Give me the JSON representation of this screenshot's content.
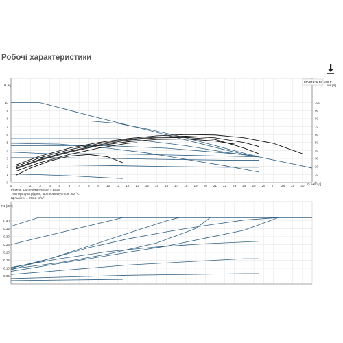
{
  "page": {
    "title": "Робочі характеристики",
    "download_icon": "download-icon"
  },
  "info_lines": [
    "Рідина, що перекачується = Вода",
    "Температура рідини, що перекачується : 60 °C",
    "Щільність = 983.2 кг/м³"
  ],
  "chart_data": [
    {
      "type": "line",
      "title": "MAGNA1 50-100 F",
      "xlabel": "Q [м³/год]",
      "ylabel": "H [м]",
      "y2label": "eta [%]",
      "xlim": [
        0,
        31
      ],
      "ylim": [
        0,
        11
      ],
      "y2lim": [
        0,
        110
      ],
      "x_ticks": [
        0,
        1,
        2,
        3,
        4,
        5,
        6,
        7,
        8,
        9,
        10,
        11,
        12,
        13,
        14,
        15,
        16,
        17,
        18,
        19,
        20,
        21,
        22,
        23,
        24,
        25,
        26,
        27,
        28,
        29,
        30
      ],
      "y_ticks": [
        0,
        1,
        2,
        3,
        4,
        5,
        6,
        7,
        8,
        9,
        10
      ],
      "y2_ticks": [
        0,
        10,
        20,
        30,
        40,
        50,
        60,
        70,
        80,
        90,
        100
      ],
      "grid": true,
      "series": [
        {
          "kind": "pump",
          "x": [
            0,
            3,
            6,
            9,
            11.3,
            13,
            16.5,
            21,
            24.8
          ],
          "y": [
            10,
            10,
            9.05,
            8.1,
            7.4,
            6.9,
            5.8,
            4.4,
            3.3
          ]
        },
        {
          "kind": "pump",
          "x": [
            0,
            8,
            11,
            14,
            18,
            22,
            25.5
          ],
          "y": [
            7.7,
            7.7,
            7.4,
            6.7,
            5.6,
            4.3,
            3.2
          ]
        },
        {
          "kind": "pump",
          "x": [
            0,
            11,
            14,
            18,
            22,
            25.5
          ],
          "y": [
            5.5,
            5.5,
            5.2,
            4.6,
            3.8,
            3.2
          ]
        },
        {
          "kind": "pump",
          "x": [
            0,
            3,
            10,
            16,
            22,
            25.5
          ],
          "y": [
            4.6,
            4.6,
            4.6,
            4.3,
            3.7,
            3.3
          ]
        },
        {
          "kind": "pump",
          "x": [
            0,
            5,
            11,
            16,
            22,
            25.5
          ],
          "y": [
            3.1,
            3.1,
            3.0,
            2.9,
            2.8,
            2.8
          ]
        },
        {
          "kind": "pump",
          "x": [
            0,
            5,
            11,
            16,
            22,
            25.5
          ],
          "y": [
            2.2,
            2.2,
            2.1,
            2.0,
            1.9,
            1.9
          ]
        },
        {
          "kind": "pump",
          "x": [
            0,
            5,
            10,
            14,
            18,
            22,
            25.5
          ],
          "y": [
            4.9,
            4.8,
            4.3,
            3.7,
            2.9,
            2.1,
            1.3
          ]
        },
        {
          "kind": "pump",
          "x": [
            0,
            4,
            9,
            14,
            18,
            22,
            25.5,
            29.5,
            31
          ],
          "y": [
            3.8,
            3.6,
            3.6,
            3.5,
            3.4,
            3.3,
            3.2,
            2.2,
            1.8
          ]
        },
        {
          "kind": "pump",
          "x": [
            0,
            3,
            6,
            9,
            11.5
          ],
          "y": [
            1.05,
            0.98,
            0.85,
            0.65,
            0.5
          ]
        },
        {
          "kind": "eta",
          "x": [
            0.5,
            3,
            6,
            9,
            12,
            15,
            18,
            21,
            24,
            27,
            30
          ],
          "y": [
            22,
            33,
            43,
            50,
            55,
            58.5,
            60,
            59.5,
            56,
            49,
            36
          ]
        },
        {
          "kind": "eta",
          "x": [
            0.5,
            3,
            6,
            9,
            12,
            15,
            18,
            21,
            24,
            25.5
          ],
          "y": [
            20,
            31,
            41,
            48.5,
            54,
            57,
            58,
            56,
            50,
            45
          ]
        },
        {
          "kind": "eta",
          "x": [
            0.5,
            3,
            6,
            9,
            12,
            15,
            18,
            21,
            24,
            25.5
          ],
          "y": [
            18,
            29,
            39,
            47,
            53,
            56,
            56.5,
            54,
            43,
            36
          ]
        },
        {
          "kind": "eta",
          "x": [
            0.5,
            3,
            6,
            9,
            12,
            15,
            18,
            21,
            23
          ],
          "y": [
            17,
            28,
            38,
            46,
            51,
            54,
            54.5,
            52,
            48
          ]
        },
        {
          "kind": "eta",
          "x": [
            0.5,
            3,
            6,
            9,
            11,
            12,
            13
          ],
          "y": [
            14,
            25,
            35,
            43,
            47,
            49,
            50
          ]
        },
        {
          "kind": "eta",
          "x": [
            0.5,
            2,
            4,
            6,
            8,
            10,
            11.5
          ],
          "y": [
            9,
            18,
            27,
            33,
            35,
            32,
            25
          ]
        }
      ]
    },
    {
      "type": "line",
      "xlabel": "",
      "ylabel": "P1 [кВт]",
      "xlim": [
        0,
        31
      ],
      "ylim": [
        0,
        0.46
      ],
      "y_ticks": [
        0.05,
        0.1,
        0.15,
        0.2,
        0.25,
        0.3,
        0.35,
        0.4
      ],
      "grid": true,
      "series": [
        {
          "x": [
            0,
            2.8,
            31
          ],
          "y": [
            0.365,
            0.42,
            0.42
          ]
        },
        {
          "x": [
            0,
            11.5,
            31
          ],
          "y": [
            0.25,
            0.42,
            0.42
          ]
        },
        {
          "x": [
            0,
            4,
            8,
            12,
            16,
            20,
            24,
            27.5
          ],
          "y": [
            0.09,
            0.16,
            0.23,
            0.285,
            0.33,
            0.37,
            0.405,
            0.42
          ]
        },
        {
          "x": [
            0,
            4,
            8,
            12,
            16,
            20,
            24,
            27.5
          ],
          "y": [
            0.08,
            0.12,
            0.16,
            0.2,
            0.24,
            0.29,
            0.34,
            0.42
          ]
        },
        {
          "x": [
            0,
            5,
            10,
            15,
            20,
            25.5
          ],
          "y": [
            0.105,
            0.16,
            0.205,
            0.235,
            0.255,
            0.27
          ]
        },
        {
          "x": [
            0,
            6,
            12,
            18,
            24,
            25.5
          ],
          "y": [
            0.06,
            0.09,
            0.12,
            0.14,
            0.16,
            0.16
          ]
        },
        {
          "x": [
            0,
            6,
            12,
            18,
            24,
            25.5
          ],
          "y": [
            0.035,
            0.045,
            0.055,
            0.06,
            0.065,
            0.065
          ]
        },
        {
          "x": [
            0,
            6,
            11.5
          ],
          "y": [
            0.022,
            0.026,
            0.03
          ]
        },
        {
          "x": [
            0,
            4,
            8,
            12,
            16,
            17.3
          ],
          "y": [
            0.1,
            0.16,
            0.24,
            0.32,
            0.4,
            0.42
          ]
        },
        {
          "x": [
            0,
            5,
            10,
            15,
            19,
            20.5
          ],
          "y": [
            0.095,
            0.135,
            0.19,
            0.26,
            0.35,
            0.42
          ]
        }
      ]
    }
  ]
}
